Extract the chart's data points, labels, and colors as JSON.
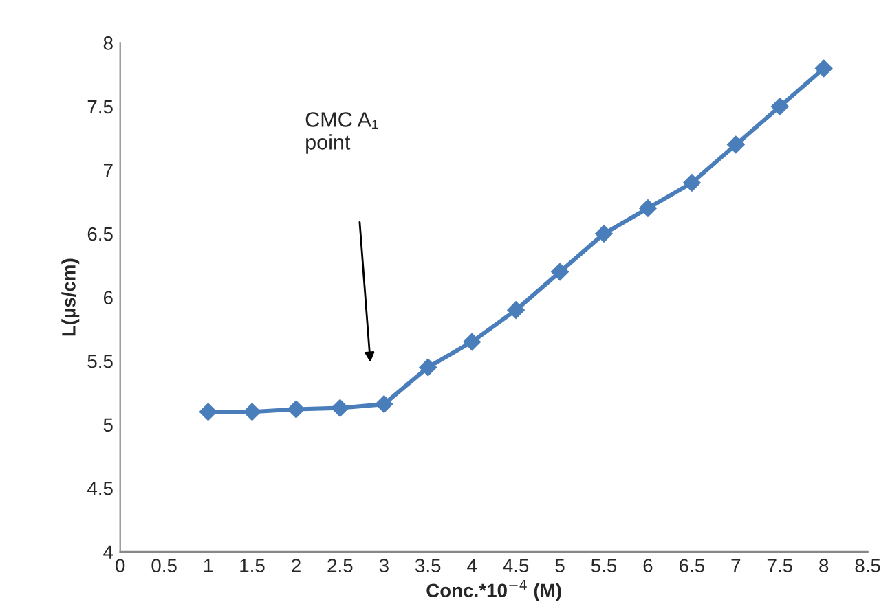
{
  "chart_data": {
    "type": "line",
    "xlabel": "Conc.*10$^{−4}$ (M)",
    "ylabel": "L(µs/cm)",
    "x": [
      1,
      1.5,
      2,
      2.5,
      3,
      3.5,
      4,
      4.5,
      5,
      5.5,
      6,
      6.5,
      7,
      7.5,
      8
    ],
    "series": [
      {
        "color": "#4a7ebb",
        "values": [
          5.1,
          5.1,
          5.12,
          5.13,
          5.16,
          5.45,
          5.65,
          5.9,
          6.2,
          6.5,
          6.7,
          6.9,
          7.2,
          7.5,
          7.8
        ]
      }
    ],
    "xlim": [
      0,
      8.5
    ],
    "xticks": [
      0,
      0.5,
      1,
      1.5,
      2,
      2.5,
      3,
      3.5,
      4,
      4.5,
      5,
      5.5,
      6,
      6.5,
      7,
      7.5,
      8,
      8.5
    ],
    "ylim": [
      4,
      8
    ],
    "yticks": [
      4,
      4.5,
      5,
      5.5,
      6,
      6.5,
      7,
      7.5,
      8
    ],
    "annotations": [
      "CMC A₁\npoint"
    ],
    "marker": "diamond",
    "line_style": "solid",
    "grid": false,
    "legend": false
  }
}
